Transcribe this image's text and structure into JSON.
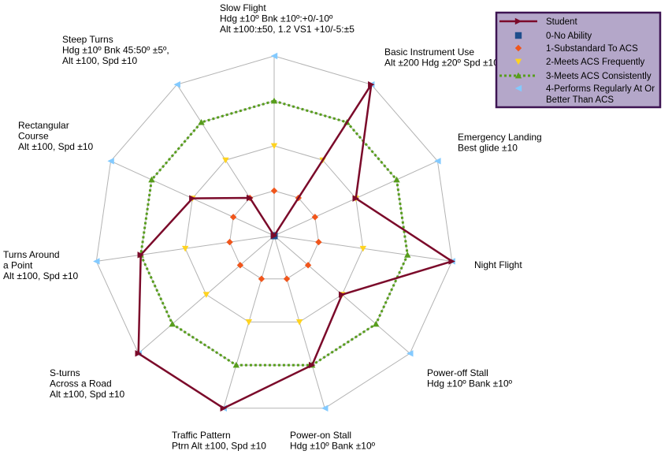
{
  "chart_data": {
    "type": "radar",
    "axes": [
      {
        "lines": [
          "Slow Flight",
          "Hdg ±10º Bnk ±10º:+0/-10º",
          "Alt ±100:±50, 1.2 VS1 +10/-5:±5"
        ]
      },
      {
        "lines": [
          "Basic Instrument Use",
          "Alt ±200 Hdg ±20º Spd ±10"
        ]
      },
      {
        "lines": [
          "Emergency Landing",
          "Best glide ±10"
        ]
      },
      {
        "lines": [
          "Night Flight"
        ]
      },
      {
        "lines": [
          "Power-off Stall",
          "Hdg ±10º Bank ±10º"
        ]
      },
      {
        "lines": [
          "Power-on Stall",
          "Hdg ±10º Bank ±10º"
        ]
      },
      {
        "lines": [
          "Traffic Pattern",
          "Ptrn Alt ±100, Spd ±10"
        ]
      },
      {
        "lines": [
          "S-turns",
          "Across a Road",
          "Alt ±100, Spd ±10"
        ]
      },
      {
        "lines": [
          "Turns Around",
          "a Point",
          "Alt ±100, Spd ±10"
        ]
      },
      {
        "lines": [
          "Rectangular",
          "Course",
          "Alt ±100, Spd ±10"
        ]
      },
      {
        "lines": [
          "Steep Turns",
          "Hdg ±10º Bnk 45:50º ±5º,",
          "Alt ±100, Spd ±10"
        ]
      }
    ],
    "rmax": 4,
    "grid": true,
    "legend_position": "top-right",
    "series": [
      {
        "name": "Student",
        "values": [
          0,
          4,
          2,
          4,
          2,
          3,
          4,
          4,
          3,
          2,
          1
        ],
        "color": "#7b0a2a",
        "style": "solid",
        "marker": "arrow"
      },
      {
        "name": "0-No Ability",
        "values": [
          0,
          0,
          0,
          0,
          0,
          0,
          0,
          0,
          0,
          0,
          0
        ],
        "color": "#1f4e8c",
        "style": "none",
        "marker": "square"
      },
      {
        "name": "1-Substandard To ACS",
        "values": [
          1,
          1,
          1,
          1,
          1,
          1,
          1,
          1,
          1,
          1,
          1
        ],
        "color": "#f0561c",
        "style": "none",
        "marker": "diamond"
      },
      {
        "name": "2-Meets ACS Frequently",
        "values": [
          2,
          2,
          2,
          2,
          2,
          2,
          2,
          2,
          2,
          2,
          2
        ],
        "color": "#ffd320",
        "style": "none",
        "marker": "triangle-down"
      },
      {
        "name": "3-Meets ACS Consistently",
        "values": [
          3,
          3,
          3,
          3,
          3,
          3,
          3,
          3,
          3,
          3,
          3
        ],
        "color": "#579d1c",
        "style": "dotted",
        "marker": "triangle-up"
      },
      {
        "name": "4-Performs Regularly At Or Better Than ACS",
        "values": [
          4,
          4,
          4,
          4,
          4,
          4,
          4,
          4,
          4,
          4,
          4
        ],
        "color": "#83caff",
        "style": "none",
        "marker": "arrow-left"
      }
    ],
    "legend_lines": [
      [
        "Student"
      ],
      [
        "0-No Ability"
      ],
      [
        "1-Substandard To ACS"
      ],
      [
        "2-Meets ACS Frequently"
      ],
      [
        "3-Meets ACS Consistently"
      ],
      [
        "4-Performs Regularly At Or",
        "Better Than ACS"
      ]
    ]
  }
}
